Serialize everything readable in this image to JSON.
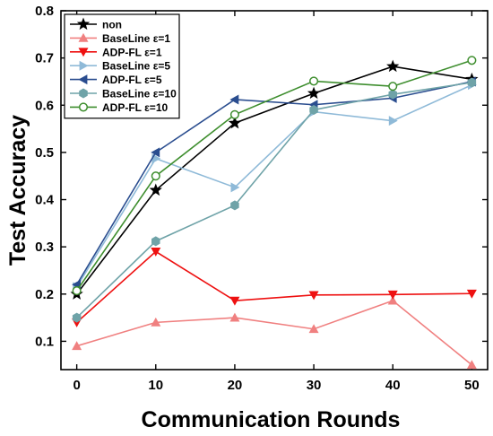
{
  "chart_data": {
    "type": "line",
    "xlabel": "Communication Rounds",
    "ylabel": "Test Accuracy",
    "x": [
      0,
      10,
      20,
      30,
      40,
      50
    ],
    "xlim": [
      -2,
      52
    ],
    "ylim": [
      0.04,
      0.8
    ],
    "xticks": [
      "0",
      "10",
      "20",
      "30",
      "40",
      "50"
    ],
    "yticks": [
      "0.1",
      "0.2",
      "0.3",
      "0.4",
      "0.5",
      "0.6",
      "0.7",
      "0.8"
    ],
    "grid": false,
    "legend_position": "top-left",
    "series": [
      {
        "name": "non",
        "color": "#000000",
        "marker": "star",
        "values": [
          0.2,
          0.42,
          0.562,
          0.625,
          0.682,
          0.655
        ]
      },
      {
        "name": "BaseLine ε=1",
        "color": "#f08080",
        "marker": "triangle-up",
        "values": [
          0.09,
          0.14,
          0.15,
          0.126,
          0.186,
          0.05
        ]
      },
      {
        "name": "ADP-FL ε=1",
        "color": "#ee1111",
        "marker": "triangle-down",
        "values": [
          0.14,
          0.29,
          0.186,
          0.198,
          0.199,
          0.201
        ]
      },
      {
        "name": "BaseLine ε=5",
        "color": "#8fbad8",
        "marker": "triangle-right",
        "values": [
          0.215,
          0.487,
          0.426,
          0.586,
          0.567,
          0.643
        ]
      },
      {
        "name": "ADP-FL ε=5",
        "color": "#2a4d8f",
        "marker": "triangle-left",
        "values": [
          0.22,
          0.5,
          0.612,
          0.601,
          0.615,
          0.65
        ]
      },
      {
        "name": "BaseLine ε=10",
        "color": "#6fa3a8",
        "marker": "hexagon",
        "values": [
          0.15,
          0.312,
          0.388,
          0.59,
          0.623,
          0.648
        ]
      },
      {
        "name": "ADP-FL ε=10",
        "color": "#3e8e2e",
        "marker": "circle-open",
        "values": [
          0.207,
          0.45,
          0.58,
          0.651,
          0.64,
          0.695
        ]
      }
    ]
  }
}
